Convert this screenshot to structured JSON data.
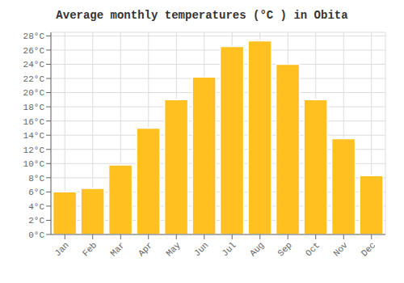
{
  "chart_data": {
    "type": "bar",
    "title": "Average monthly temperatures (°C ) in Obita",
    "categories": [
      "Jan",
      "Feb",
      "Mar",
      "Apr",
      "May",
      "Jun",
      "Jul",
      "Aug",
      "Sep",
      "Oct",
      "Nov",
      "Dec"
    ],
    "values": [
      6,
      6.5,
      9.8,
      15,
      19,
      22.2,
      26.5,
      27.3,
      24,
      19,
      13.5,
      8.3
    ],
    "color": "#FFC020",
    "ylim": [
      0,
      28.5
    ],
    "yticks": [
      {
        "value": 0,
        "label": "0°C"
      },
      {
        "value": 2,
        "label": "2°C"
      },
      {
        "value": 4,
        "label": "4°C"
      },
      {
        "value": 6,
        "label": "6°C"
      },
      {
        "value": 8,
        "label": "8°C"
      },
      {
        "value": 10,
        "label": "10°C"
      },
      {
        "value": 12,
        "label": "12°C"
      },
      {
        "value": 14,
        "label": "14°C"
      },
      {
        "value": 16,
        "label": "16°C"
      },
      {
        "value": 18,
        "label": "18°C"
      },
      {
        "value": 20,
        "label": "20°C"
      },
      {
        "value": 22,
        "label": "22°C"
      },
      {
        "value": 24,
        "label": "24°C"
      },
      {
        "value": 26,
        "label": "26°C"
      },
      {
        "value": 28,
        "label": "28°C"
      }
    ],
    "grid": true
  }
}
